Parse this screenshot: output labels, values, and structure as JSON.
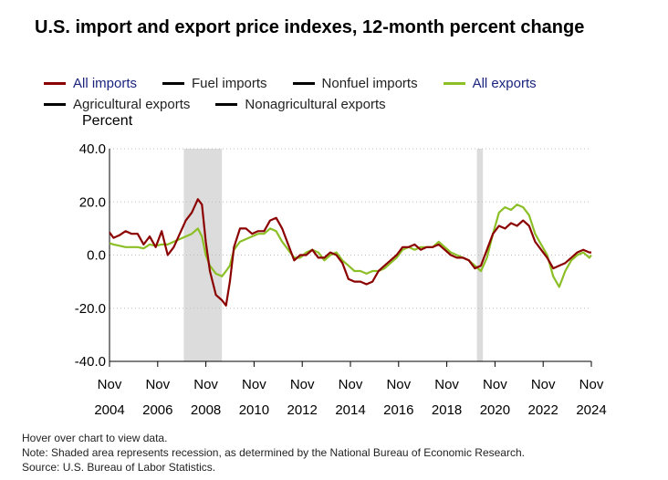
{
  "title": "U.S. import and export price indexes, 12-month percent change",
  "legend": [
    {
      "label": "All imports",
      "color": "#8b0000",
      "text_color": "#1a237e"
    },
    {
      "label": "Fuel imports",
      "color": "#000000",
      "text_color": "#222222"
    },
    {
      "label": "Nonfuel imports",
      "color": "#000000",
      "text_color": "#222222"
    },
    {
      "label": "All exports",
      "color": "#8cbf26",
      "text_color": "#1a237e"
    },
    {
      "label": "Agricultural exports",
      "color": "#000000",
      "text_color": "#222222"
    },
    {
      "label": "Nonagricultural exports",
      "color": "#000000",
      "text_color": "#222222"
    }
  ],
  "footer": {
    "hover": "Hover over chart to view data.",
    "note": "Note: Shaded area represents recession, as determined by the National Bureau of Economic Research.",
    "source": "Source: U.S. Bureau of Labor Statistics."
  },
  "chart_data": {
    "type": "line",
    "ylabel": "Percent",
    "ylim": [
      -40,
      40
    ],
    "yticks": [
      -40,
      -20,
      0,
      20,
      40
    ],
    "ytick_labels": [
      "-40.0",
      "-20.0",
      "0.0",
      "20.0",
      "40.0"
    ],
    "xlim": [
      2004.833,
      2024.833
    ],
    "xticks": [
      {
        "month": "Nov",
        "year": "2004",
        "x": 2004.833
      },
      {
        "month": "Nov",
        "year": "2006",
        "x": 2006.833
      },
      {
        "month": "Nov",
        "year": "2008",
        "x": 2008.833
      },
      {
        "month": "Nov",
        "year": "2010",
        "x": 2010.833
      },
      {
        "month": "Nov",
        "year": "2012",
        "x": 2012.833
      },
      {
        "month": "Nov",
        "year": "2014",
        "x": 2014.833
      },
      {
        "month": "Nov",
        "year": "2016",
        "x": 2016.833
      },
      {
        "month": "Nov",
        "year": "2018",
        "x": 2018.833
      },
      {
        "month": "Nov",
        "year": "2020",
        "x": 2020.833
      },
      {
        "month": "Nov",
        "year": "2022",
        "x": 2022.833
      },
      {
        "month": "Nov",
        "year": "2024",
        "x": 2024.833
      }
    ],
    "recessions": [
      {
        "start": 2007.917,
        "end": 2009.5
      },
      {
        "start": 2020.083,
        "end": 2020.333
      }
    ],
    "grid": true,
    "series": [
      {
        "name": "All imports",
        "color": "#8b0000",
        "x": [
          2004.833,
          2005.0,
          2005.25,
          2005.5,
          2005.75,
          2006.0,
          2006.25,
          2006.5,
          2006.75,
          2007.0,
          2007.25,
          2007.5,
          2007.75,
          2008.0,
          2008.25,
          2008.5,
          2008.67,
          2008.83,
          2009.0,
          2009.25,
          2009.5,
          2009.67,
          2009.83,
          2010.0,
          2010.25,
          2010.5,
          2010.75,
          2011.0,
          2011.25,
          2011.5,
          2011.75,
          2012.0,
          2012.25,
          2012.5,
          2012.75,
          2013.0,
          2013.25,
          2013.5,
          2013.75,
          2014.0,
          2014.25,
          2014.5,
          2014.75,
          2015.0,
          2015.25,
          2015.5,
          2015.75,
          2016.0,
          2016.25,
          2016.5,
          2016.75,
          2017.0,
          2017.25,
          2017.5,
          2017.75,
          2018.0,
          2018.25,
          2018.5,
          2018.75,
          2019.0,
          2019.25,
          2019.5,
          2019.75,
          2020.0,
          2020.25,
          2020.5,
          2020.75,
          2021.0,
          2021.25,
          2021.5,
          2021.75,
          2022.0,
          2022.25,
          2022.5,
          2022.75,
          2023.0,
          2023.25,
          2023.5,
          2023.75,
          2024.0,
          2024.25,
          2024.5,
          2024.75,
          2024.833
        ],
        "y": [
          8.5,
          6.5,
          7.5,
          9,
          8,
          8,
          4,
          7,
          3,
          9,
          0,
          3,
          8,
          13,
          16,
          21,
          19,
          5,
          -6,
          -15,
          -17,
          -19,
          -10,
          3,
          10,
          10,
          8,
          9,
          9,
          13,
          14,
          10,
          4,
          -2,
          0,
          0,
          2,
          -1,
          -1,
          1,
          0,
          -3,
          -9,
          -10,
          -10,
          -11,
          -10,
          -6,
          -4,
          -2,
          0,
          3,
          3,
          4,
          2,
          3,
          3,
          4,
          2,
          0,
          -1,
          -1,
          -2,
          -5,
          -4,
          2,
          8,
          11,
          10,
          12,
          11,
          13,
          11,
          5,
          2,
          -1,
          -5,
          -4,
          -3,
          -1,
          1,
          2,
          1,
          1
        ]
      },
      {
        "name": "All exports",
        "color": "#8cbf26",
        "x": [
          2004.833,
          2005.0,
          2005.25,
          2005.5,
          2005.75,
          2006.0,
          2006.25,
          2006.5,
          2006.75,
          2007.0,
          2007.25,
          2007.5,
          2007.75,
          2008.0,
          2008.25,
          2008.5,
          2008.67,
          2008.83,
          2009.0,
          2009.25,
          2009.5,
          2009.67,
          2009.83,
          2010.0,
          2010.25,
          2010.5,
          2010.75,
          2011.0,
          2011.25,
          2011.5,
          2011.75,
          2012.0,
          2012.25,
          2012.5,
          2012.75,
          2013.0,
          2013.25,
          2013.5,
          2013.75,
          2014.0,
          2014.25,
          2014.5,
          2014.75,
          2015.0,
          2015.25,
          2015.5,
          2015.75,
          2016.0,
          2016.25,
          2016.5,
          2016.75,
          2017.0,
          2017.25,
          2017.5,
          2017.75,
          2018.0,
          2018.25,
          2018.5,
          2018.75,
          2019.0,
          2019.25,
          2019.5,
          2019.75,
          2020.0,
          2020.25,
          2020.5,
          2020.75,
          2021.0,
          2021.25,
          2021.5,
          2021.75,
          2022.0,
          2022.25,
          2022.5,
          2022.75,
          2023.0,
          2023.25,
          2023.5,
          2023.75,
          2024.0,
          2024.25,
          2024.5,
          2024.75,
          2024.833
        ],
        "y": [
          4.5,
          4,
          3.5,
          3,
          3,
          3,
          2.5,
          4,
          3.5,
          4,
          4,
          5,
          6,
          7,
          8,
          10,
          7,
          0,
          -4,
          -7,
          -8,
          -6,
          -4,
          2,
          5,
          6,
          7,
          8,
          8,
          10,
          9,
          5,
          2,
          -1,
          -1,
          1,
          2,
          1,
          -2,
          0,
          1,
          -2,
          -4,
          -6,
          -6,
          -7,
          -6,
          -6,
          -5,
          -3,
          -1,
          2,
          3,
          2,
          3,
          3,
          3,
          5,
          3,
          1,
          0,
          -1,
          -2,
          -4,
          -6,
          -1,
          8,
          16,
          18,
          17,
          19,
          18,
          15,
          8,
          4,
          0,
          -8,
          -12,
          -6,
          -2,
          0,
          1,
          -1,
          0
        ]
      }
    ]
  }
}
